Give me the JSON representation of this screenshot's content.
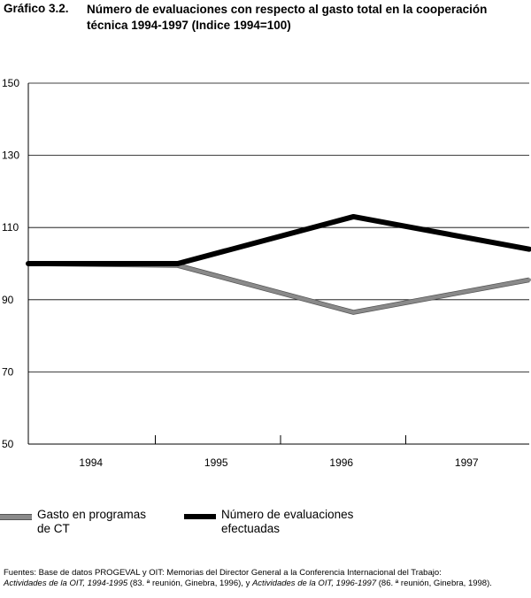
{
  "title": {
    "number": "Gráfico 3.2.",
    "text": "Número de evaluaciones con respecto al gasto total en la cooperación técnica 1994-1997 (Indice 1994=100)"
  },
  "chart_data": {
    "type": "line",
    "categories": [
      "1994",
      "1995",
      "1996",
      "1997"
    ],
    "x_points": [
      1994.0,
      1994.85,
      1995.85,
      1996.85
    ],
    "yticks": [
      50,
      70,
      90,
      110,
      130,
      150
    ],
    "ylim": [
      50,
      150
    ],
    "grid": true,
    "legend_position": "bottom",
    "series": [
      {
        "name": "Gasto en programas\nde CT",
        "color": "#8a8a8a",
        "values": [
          100,
          99.5,
          86.5,
          95.5
        ]
      },
      {
        "name": "Número de evaluaciones\nefectuadas",
        "color": "#000000",
        "values": [
          100,
          100,
          113,
          104
        ]
      }
    ]
  },
  "source": {
    "line1": "Fuentes: Base de datos PROGEVAL y OIT: Memorias del Director General a la Conferencia Internacional del Trabajo:",
    "ref1_title": "Actividades de la OIT, 1994-1995",
    "ref1_detail": " (83. ª reunión, Ginebra, 1996), y ",
    "ref2_title": "Actividades de la OIT, 1996-1997",
    "ref2_detail": " (86. ª reunión, Ginebra, 1998)."
  }
}
